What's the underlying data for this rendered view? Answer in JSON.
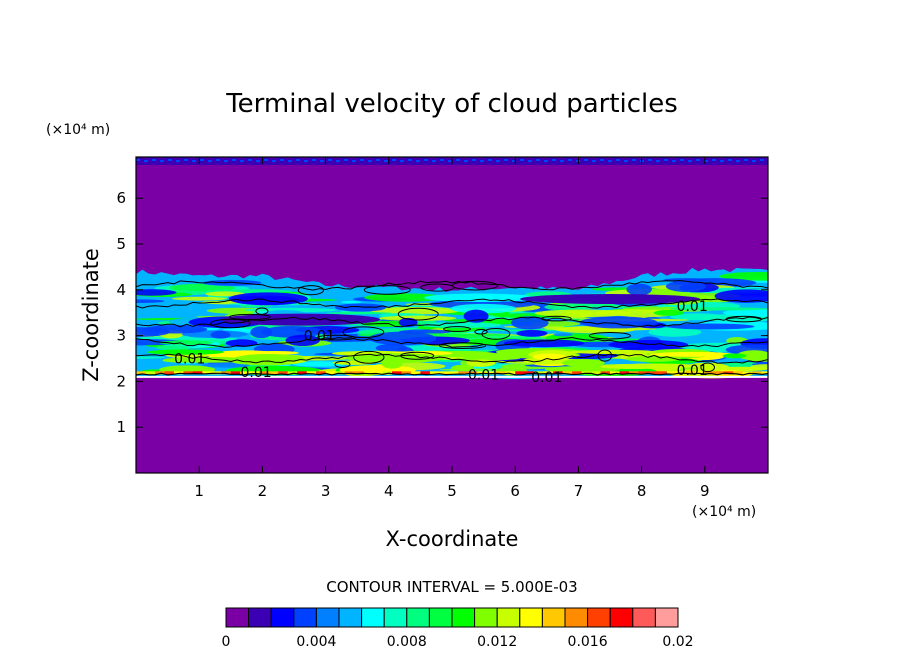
{
  "chart_data": {
    "type": "heatmap",
    "title": "Terminal velocity of cloud particles",
    "xlabel": "X-coordinate",
    "ylabel": "Z-coordinate",
    "x_unit": "(×10⁴ m)",
    "y_unit": "(×10⁴ m)",
    "xlim": [
      0,
      10
    ],
    "ylim": [
      0,
      6.9
    ],
    "x_ticks": [
      "1",
      "2",
      "3",
      "4",
      "5",
      "6",
      "7",
      "8",
      "9"
    ],
    "y_ticks": [
      "1",
      "2",
      "3",
      "4",
      "5",
      "6"
    ],
    "contour_interval_text": "CONTOUR INTERVAL = 5.000E-03",
    "contour_labels": [
      {
        "text": "0.01",
        "x": 0.85,
        "z": 2.5
      },
      {
        "text": "0.01",
        "x": 1.9,
        "z": 2.2
      },
      {
        "text": "0.01",
        "x": 2.9,
        "z": 3.0
      },
      {
        "text": "0.01",
        "x": 5.5,
        "z": 2.15
      },
      {
        "text": "0.01",
        "x": 6.5,
        "z": 2.1
      },
      {
        "text": "0.01",
        "x": 8.8,
        "z": 3.65
      },
      {
        "text": "0.01",
        "x": 8.8,
        "z": 2.25
      }
    ],
    "band_profile": {
      "x": [
        0,
        1,
        2,
        3,
        4,
        5,
        6,
        7,
        8,
        9,
        10
      ],
      "cloud_top_z": [
        4.4,
        4.3,
        4.3,
        4.1,
        4.05,
        4.0,
        4.05,
        4.0,
        4.3,
        4.45,
        4.4
      ],
      "cloud_base_z": [
        2.1,
        2.1,
        2.1,
        2.1,
        2.1,
        2.1,
        2.05,
        2.1,
        2.1,
        2.1,
        2.1
      ]
    },
    "colorbar": {
      "min": 0,
      "max": 0.02,
      "step": 0.00125,
      "tick_labels": [
        "0",
        "0.004",
        "0.008",
        "0.012",
        "0.016",
        "0.02"
      ],
      "colors": [
        "#7a00a6",
        "#3c00b4",
        "#0000ff",
        "#0040ff",
        "#0080ff",
        "#00b4ff",
        "#00ffff",
        "#00ffc0",
        "#00ff80",
        "#00ff40",
        "#00ff00",
        "#80ff00",
        "#c8ff00",
        "#ffff00",
        "#ffc800",
        "#ff8c00",
        "#ff4000",
        "#ff0000",
        "#ff5a5a",
        "#ff9c9c"
      ]
    }
  }
}
